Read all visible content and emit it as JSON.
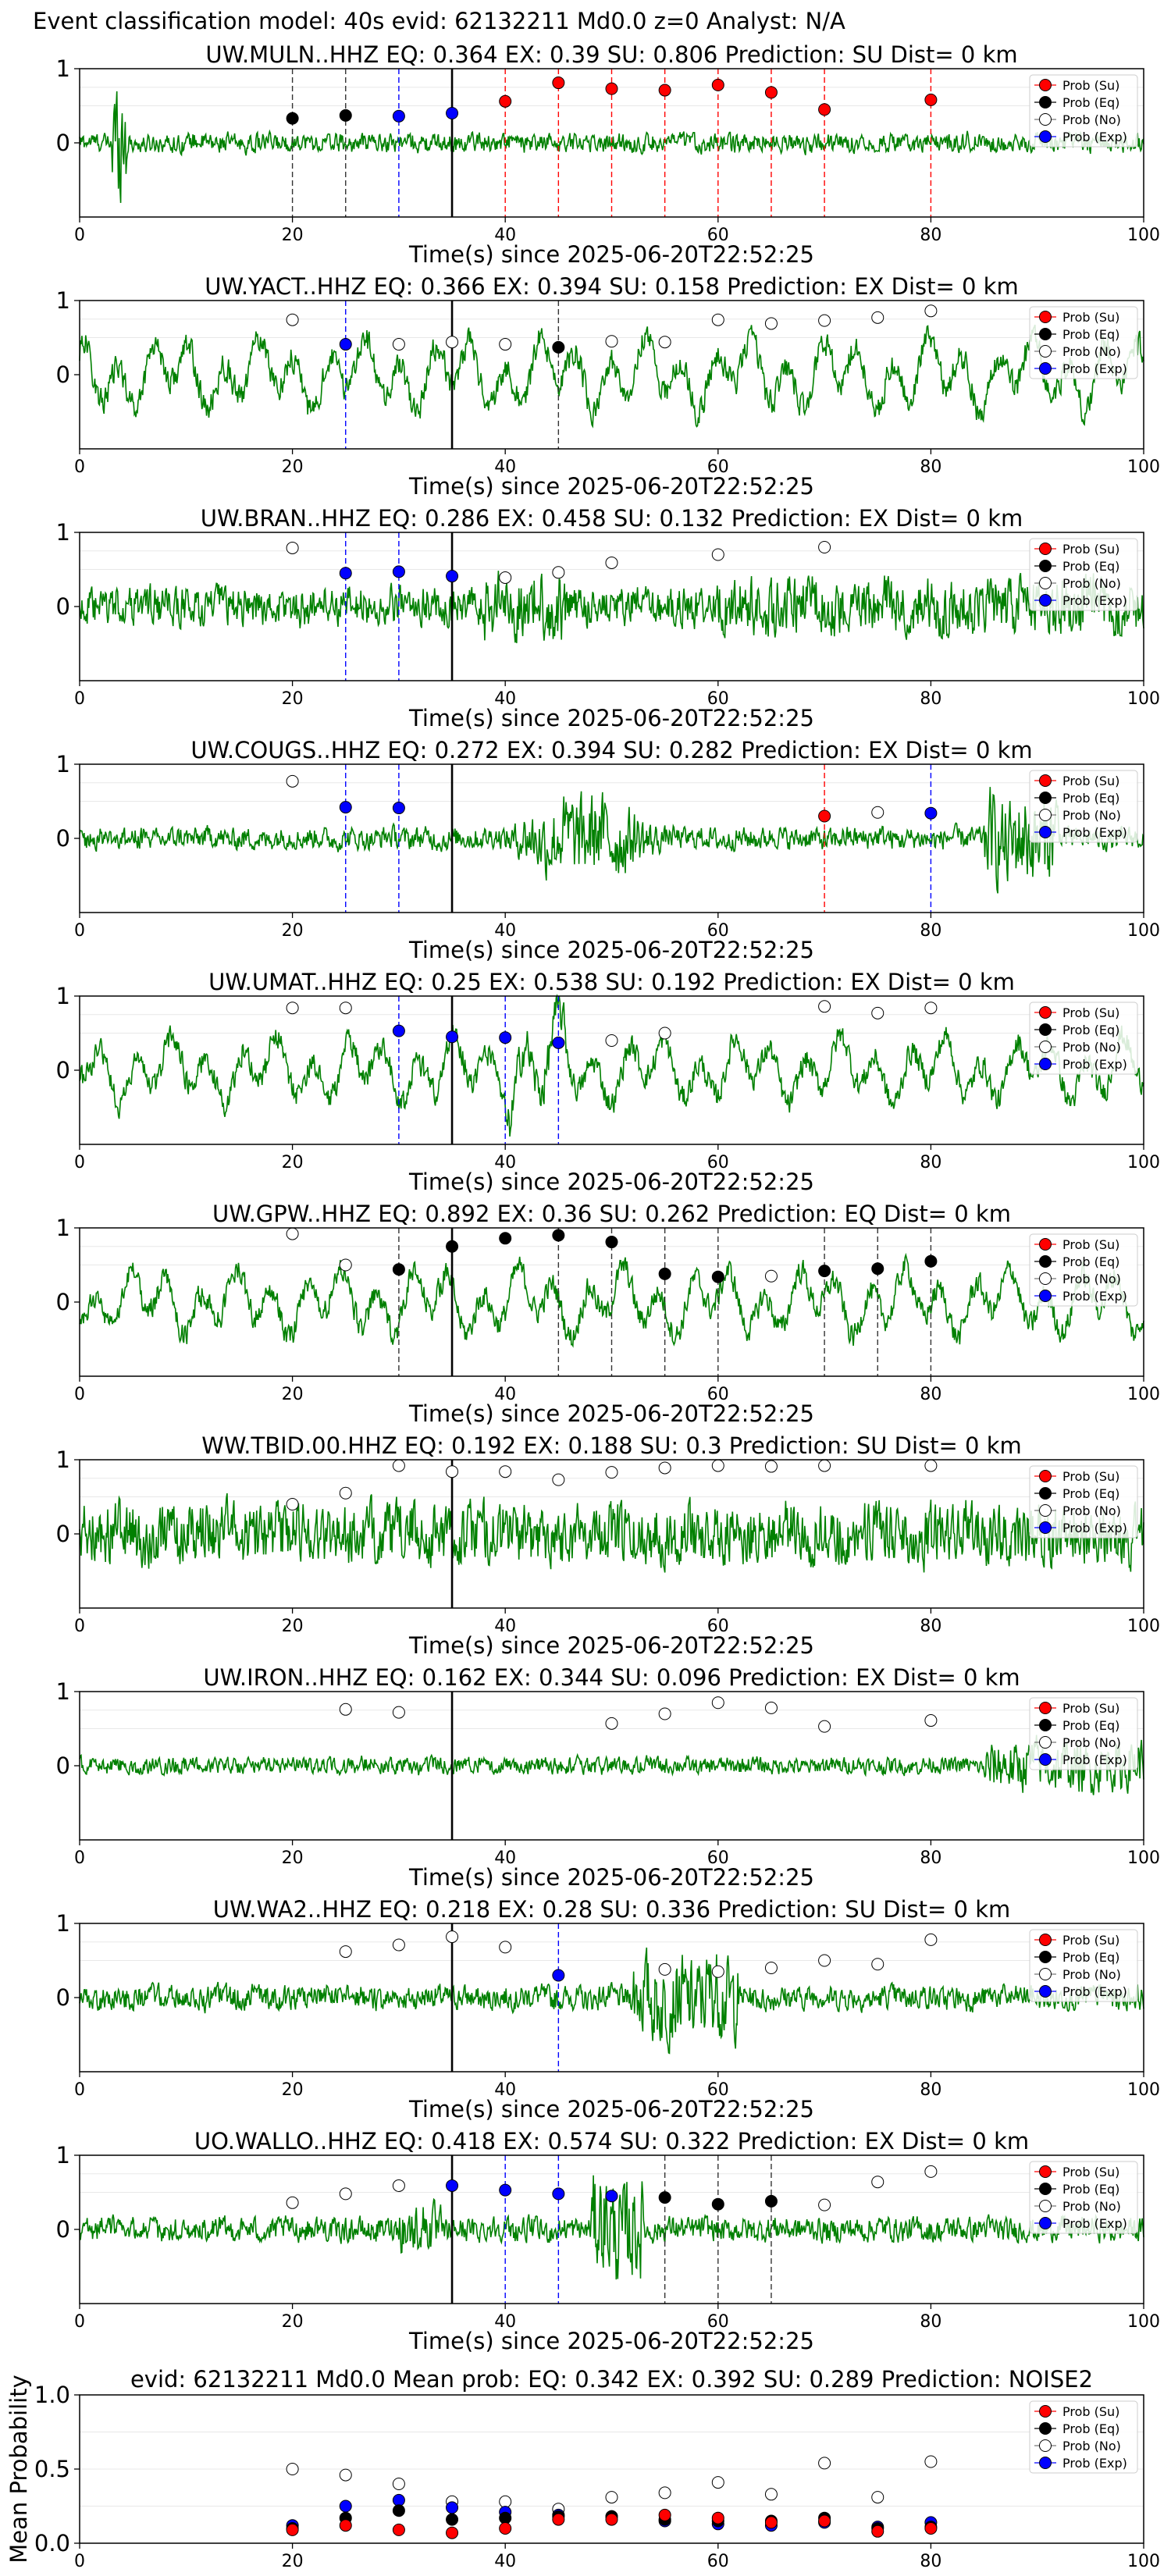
{
  "suptitle": "Event classification model: 40s evid: 62132211 Md0.0 z=0 Analyst: N/A",
  "xlabel": "Time(s) since 2025-06-20T22:52:25",
  "legend_labels": [
    "Prob (Su)",
    "Prob (Eq)",
    "Prob (No)",
    "Prob (Exp)"
  ],
  "colors": {
    "su": "#ff0000",
    "eq": "#000000",
    "no": "#ffffff",
    "exp": "#0000ff",
    "trace": "#008000"
  },
  "chart_data": {
    "type": "scatter",
    "window_times": [
      20,
      25,
      30,
      35,
      40,
      45,
      50,
      55,
      60,
      65,
      70,
      75,
      80
    ],
    "xlim": [
      0,
      100
    ],
    "xticks": [
      0,
      20,
      40,
      60,
      80,
      100
    ],
    "pick_time": 35,
    "stations": [
      {
        "name": "UW.MULN..HHZ",
        "eq": "0.364",
        "ex": "0.39",
        "su": "0.806",
        "prediction": "SU",
        "dist": "0",
        "ylim": [
          -1,
          1
        ],
        "yticks": [
          0,
          1
        ],
        "vlines": [
          20,
          25,
          30,
          40,
          45,
          50,
          55,
          60,
          65,
          70,
          80
        ],
        "points": [
          {
            "t": 20,
            "p": 0.33,
            "cls": "eq"
          },
          {
            "t": 25,
            "p": 0.37,
            "cls": "eq"
          },
          {
            "t": 30,
            "p": 0.36,
            "cls": "exp"
          },
          {
            "t": 35,
            "p": 0.4,
            "cls": "exp"
          },
          {
            "t": 40,
            "p": 0.56,
            "cls": "su"
          },
          {
            "t": 45,
            "p": 0.81,
            "cls": "su"
          },
          {
            "t": 50,
            "p": 0.73,
            "cls": "su"
          },
          {
            "t": 55,
            "p": 0.71,
            "cls": "su"
          },
          {
            "t": 60,
            "p": 0.78,
            "cls": "su"
          },
          {
            "t": 65,
            "p": 0.68,
            "cls": "su"
          },
          {
            "t": 70,
            "p": 0.45,
            "cls": "su"
          },
          {
            "t": 80,
            "p": 0.58,
            "cls": "su"
          }
        ]
      },
      {
        "name": "UW.YACT..HHZ",
        "eq": "0.366",
        "ex": "0.394",
        "su": "0.158",
        "prediction": "EX",
        "dist": "0",
        "ylim": [
          -1,
          1
        ],
        "yticks": [
          0,
          1
        ],
        "vlines": [
          25,
          45
        ],
        "points": [
          {
            "t": 20,
            "p": 0.74,
            "cls": "no"
          },
          {
            "t": 25,
            "p": 0.41,
            "cls": "exp"
          },
          {
            "t": 30,
            "p": 0.41,
            "cls": "no"
          },
          {
            "t": 35,
            "p": 0.44,
            "cls": "no"
          },
          {
            "t": 40,
            "p": 0.41,
            "cls": "no"
          },
          {
            "t": 45,
            "p": 0.37,
            "cls": "eq"
          },
          {
            "t": 50,
            "p": 0.45,
            "cls": "no"
          },
          {
            "t": 55,
            "p": 0.44,
            "cls": "no"
          },
          {
            "t": 60,
            "p": 0.74,
            "cls": "no"
          },
          {
            "t": 65,
            "p": 0.69,
            "cls": "no"
          },
          {
            "t": 70,
            "p": 0.73,
            "cls": "no"
          },
          {
            "t": 75,
            "p": 0.77,
            "cls": "no"
          },
          {
            "t": 80,
            "p": 0.86,
            "cls": "no"
          }
        ]
      },
      {
        "name": "UW.BRAN..HHZ",
        "eq": "0.286",
        "ex": "0.458",
        "su": "0.132",
        "prediction": "EX",
        "dist": "0",
        "ylim": [
          -1,
          1
        ],
        "yticks": [
          0,
          1
        ],
        "vlines": [
          25,
          30
        ],
        "points": [
          {
            "t": 20,
            "p": 0.79,
            "cls": "no"
          },
          {
            "t": 25,
            "p": 0.45,
            "cls": "exp"
          },
          {
            "t": 30,
            "p": 0.47,
            "cls": "exp"
          },
          {
            "t": 35,
            "p": 0.41,
            "cls": "exp"
          },
          {
            "t": 40,
            "p": 0.39,
            "cls": "no"
          },
          {
            "t": 45,
            "p": 0.46,
            "cls": "no"
          },
          {
            "t": 50,
            "p": 0.59,
            "cls": "no"
          },
          {
            "t": 60,
            "p": 0.7,
            "cls": "no"
          },
          {
            "t": 70,
            "p": 0.8,
            "cls": "no"
          }
        ]
      },
      {
        "name": "UW.COUGS..HHZ",
        "eq": "0.272",
        "ex": "0.394",
        "su": "0.282",
        "prediction": "EX",
        "dist": "0",
        "ylim": [
          -1,
          1
        ],
        "yticks": [
          0,
          1
        ],
        "vlines": [
          25,
          30,
          70,
          80
        ],
        "points": [
          {
            "t": 20,
            "p": 0.77,
            "cls": "no"
          },
          {
            "t": 25,
            "p": 0.42,
            "cls": "exp"
          },
          {
            "t": 30,
            "p": 0.41,
            "cls": "exp"
          },
          {
            "t": 70,
            "p": 0.3,
            "cls": "su"
          },
          {
            "t": 75,
            "p": 0.35,
            "cls": "no"
          },
          {
            "t": 80,
            "p": 0.34,
            "cls": "exp"
          }
        ]
      },
      {
        "name": "UW.UMAT..HHZ",
        "eq": "0.25",
        "ex": "0.538",
        "su": "0.192",
        "prediction": "EX",
        "dist": "0",
        "ylim": [
          -1,
          1
        ],
        "yticks": [
          0,
          1
        ],
        "vlines": [
          30,
          40,
          45
        ],
        "points": [
          {
            "t": 20,
            "p": 0.84,
            "cls": "no"
          },
          {
            "t": 25,
            "p": 0.84,
            "cls": "no"
          },
          {
            "t": 30,
            "p": 0.53,
            "cls": "exp"
          },
          {
            "t": 35,
            "p": 0.45,
            "cls": "exp"
          },
          {
            "t": 40,
            "p": 0.44,
            "cls": "exp"
          },
          {
            "t": 45,
            "p": 0.37,
            "cls": "exp"
          },
          {
            "t": 50,
            "p": 0.4,
            "cls": "no"
          },
          {
            "t": 55,
            "p": 0.5,
            "cls": "no"
          },
          {
            "t": 70,
            "p": 0.86,
            "cls": "no"
          },
          {
            "t": 75,
            "p": 0.77,
            "cls": "no"
          },
          {
            "t": 80,
            "p": 0.84,
            "cls": "no"
          }
        ]
      },
      {
        "name": "UW.GPW..HHZ",
        "eq": "0.892",
        "ex": "0.36",
        "su": "0.262",
        "prediction": "EQ",
        "dist": "0",
        "ylim": [
          -1,
          1
        ],
        "yticks": [
          0,
          1
        ],
        "vlines": [
          30,
          45,
          50,
          55,
          60,
          70,
          75,
          80
        ],
        "points": [
          {
            "t": 20,
            "p": 0.92,
            "cls": "no"
          },
          {
            "t": 25,
            "p": 0.5,
            "cls": "no"
          },
          {
            "t": 30,
            "p": 0.44,
            "cls": "eq"
          },
          {
            "t": 35,
            "p": 0.75,
            "cls": "eq"
          },
          {
            "t": 40,
            "p": 0.86,
            "cls": "eq"
          },
          {
            "t": 45,
            "p": 0.9,
            "cls": "eq"
          },
          {
            "t": 50,
            "p": 0.81,
            "cls": "eq"
          },
          {
            "t": 55,
            "p": 0.38,
            "cls": "eq"
          },
          {
            "t": 60,
            "p": 0.34,
            "cls": "eq"
          },
          {
            "t": 65,
            "p": 0.35,
            "cls": "no"
          },
          {
            "t": 70,
            "p": 0.42,
            "cls": "eq"
          },
          {
            "t": 75,
            "p": 0.45,
            "cls": "eq"
          },
          {
            "t": 80,
            "p": 0.55,
            "cls": "eq"
          }
        ]
      },
      {
        "name": "WW.TBID.00.HHZ",
        "eq": "0.192",
        "ex": "0.188",
        "su": "0.3",
        "prediction": "SU",
        "dist": "0",
        "ylim": [
          -1,
          1
        ],
        "yticks": [
          0,
          1
        ],
        "vlines": [],
        "points": [
          {
            "t": 20,
            "p": 0.4,
            "cls": "no"
          },
          {
            "t": 25,
            "p": 0.55,
            "cls": "no"
          },
          {
            "t": 30,
            "p": 0.92,
            "cls": "no"
          },
          {
            "t": 35,
            "p": 0.84,
            "cls": "no"
          },
          {
            "t": 40,
            "p": 0.84,
            "cls": "no"
          },
          {
            "t": 45,
            "p": 0.73,
            "cls": "no"
          },
          {
            "t": 50,
            "p": 0.83,
            "cls": "no"
          },
          {
            "t": 55,
            "p": 0.89,
            "cls": "no"
          },
          {
            "t": 60,
            "p": 0.92,
            "cls": "no"
          },
          {
            "t": 65,
            "p": 0.91,
            "cls": "no"
          },
          {
            "t": 70,
            "p": 0.92,
            "cls": "no"
          },
          {
            "t": 80,
            "p": 0.92,
            "cls": "no"
          }
        ]
      },
      {
        "name": "UW.IRON..HHZ",
        "eq": "0.162",
        "ex": "0.344",
        "su": "0.096",
        "prediction": "EX",
        "dist": "0",
        "ylim": [
          -1,
          1
        ],
        "yticks": [
          0,
          1
        ],
        "vlines": [],
        "points": [
          {
            "t": 25,
            "p": 0.76,
            "cls": "no"
          },
          {
            "t": 30,
            "p": 0.72,
            "cls": "no"
          },
          {
            "t": 50,
            "p": 0.57,
            "cls": "no"
          },
          {
            "t": 55,
            "p": 0.7,
            "cls": "no"
          },
          {
            "t": 60,
            "p": 0.85,
            "cls": "no"
          },
          {
            "t": 65,
            "p": 0.78,
            "cls": "no"
          },
          {
            "t": 70,
            "p": 0.53,
            "cls": "no"
          },
          {
            "t": 80,
            "p": 0.61,
            "cls": "no"
          }
        ]
      },
      {
        "name": "UW.WA2..HHZ",
        "eq": "0.218",
        "ex": "0.28",
        "su": "0.336",
        "prediction": "SU",
        "dist": "0",
        "ylim": [
          -1,
          1
        ],
        "yticks": [
          0,
          1
        ],
        "vlines": [
          45
        ],
        "points": [
          {
            "t": 25,
            "p": 0.62,
            "cls": "no"
          },
          {
            "t": 30,
            "p": 0.71,
            "cls": "no"
          },
          {
            "t": 35,
            "p": 0.82,
            "cls": "no"
          },
          {
            "t": 40,
            "p": 0.68,
            "cls": "no"
          },
          {
            "t": 45,
            "p": 0.3,
            "cls": "exp"
          },
          {
            "t": 55,
            "p": 0.38,
            "cls": "no"
          },
          {
            "t": 60,
            "p": 0.35,
            "cls": "no"
          },
          {
            "t": 65,
            "p": 0.4,
            "cls": "no"
          },
          {
            "t": 70,
            "p": 0.5,
            "cls": "no"
          },
          {
            "t": 75,
            "p": 0.45,
            "cls": "no"
          },
          {
            "t": 80,
            "p": 0.78,
            "cls": "no"
          }
        ]
      },
      {
        "name": "UO.WALLO..HHZ",
        "eq": "0.418",
        "ex": "0.574",
        "su": "0.322",
        "prediction": "EX",
        "dist": "0",
        "ylim": [
          -1,
          1
        ],
        "yticks": [
          0,
          1
        ],
        "vlines": [
          40,
          45,
          55,
          60,
          65
        ],
        "points": [
          {
            "t": 20,
            "p": 0.36,
            "cls": "no"
          },
          {
            "t": 25,
            "p": 0.48,
            "cls": "no"
          },
          {
            "t": 30,
            "p": 0.59,
            "cls": "no"
          },
          {
            "t": 35,
            "p": 0.59,
            "cls": "exp"
          },
          {
            "t": 40,
            "p": 0.53,
            "cls": "exp"
          },
          {
            "t": 45,
            "p": 0.48,
            "cls": "exp"
          },
          {
            "t": 50,
            "p": 0.45,
            "cls": "exp"
          },
          {
            "t": 55,
            "p": 0.43,
            "cls": "eq"
          },
          {
            "t": 60,
            "p": 0.34,
            "cls": "eq"
          },
          {
            "t": 65,
            "p": 0.38,
            "cls": "eq"
          },
          {
            "t": 70,
            "p": 0.33,
            "cls": "no"
          },
          {
            "t": 75,
            "p": 0.64,
            "cls": "no"
          },
          {
            "t": 80,
            "p": 0.78,
            "cls": "no"
          }
        ]
      }
    ],
    "mean": {
      "title": "evid: 62132211  Md0.0   Mean prob:   EQ: 0.342  EX: 0.392  SU: 0.289   Prediction: NOISE2",
      "ylabel": "Mean Probability",
      "ylim": [
        0,
        1
      ],
      "yticks": [
        "0.0",
        "0.5",
        "1.0"
      ],
      "series": [
        {
          "name": "Prob (No)",
          "cls": "no",
          "values": [
            0.5,
            0.46,
            0.4,
            0.28,
            0.28,
            0.23,
            0.31,
            0.34,
            0.41,
            0.33,
            0.54,
            0.31,
            0.55
          ]
        },
        {
          "name": "Prob (Exp)",
          "cls": "exp",
          "values": [
            0.12,
            0.25,
            0.29,
            0.24,
            0.21,
            0.19,
            0.18,
            0.15,
            0.13,
            0.12,
            0.14,
            0.11,
            0.14
          ]
        },
        {
          "name": "Prob (Eq)",
          "cls": "eq",
          "values": [
            0.1,
            0.17,
            0.22,
            0.16,
            0.17,
            0.18,
            0.18,
            0.16,
            0.15,
            0.15,
            0.17,
            0.1,
            0.11
          ]
        },
        {
          "name": "Prob (Su)",
          "cls": "su",
          "values": [
            0.09,
            0.12,
            0.09,
            0.07,
            0.1,
            0.16,
            0.16,
            0.19,
            0.17,
            0.14,
            0.15,
            0.08,
            0.1
          ]
        }
      ]
    }
  }
}
